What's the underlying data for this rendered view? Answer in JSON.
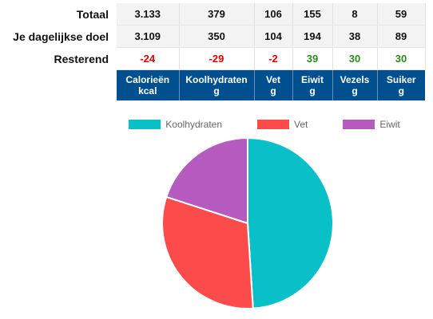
{
  "table": {
    "rows": [
      {
        "label": "Totaal",
        "values": [
          "3.133",
          "379",
          "106",
          "155",
          "8",
          "59"
        ]
      },
      {
        "label": "Je dagelijkse doel",
        "values": [
          "3.109",
          "350",
          "104",
          "194",
          "38",
          "89"
        ]
      },
      {
        "label": "Resterend",
        "values": [
          "-24",
          "-29",
          "-2",
          "39",
          "30",
          "30"
        ]
      }
    ],
    "columns": [
      {
        "name": "Calorieën",
        "unit": "kcal"
      },
      {
        "name": "Koolhydraten",
        "unit": "g"
      },
      {
        "name": "Vet",
        "unit": "g"
      },
      {
        "name": "Eiwit",
        "unit": "g"
      },
      {
        "name": "Vezels",
        "unit": "g"
      },
      {
        "name": "Suiker",
        "unit": "g"
      }
    ],
    "colors": {
      "negative": "#e00000",
      "positive": "#2a8a1a",
      "header_bg": "#00508f"
    }
  },
  "chart_data": {
    "type": "pie",
    "labels": [
      "Koolhydraten",
      "Vet",
      "Eiwit"
    ],
    "values": [
      49,
      31,
      20
    ],
    "colors": [
      "#09c0c8",
      "#fb4b4b",
      "#b65bbf"
    ],
    "legend": "top"
  }
}
